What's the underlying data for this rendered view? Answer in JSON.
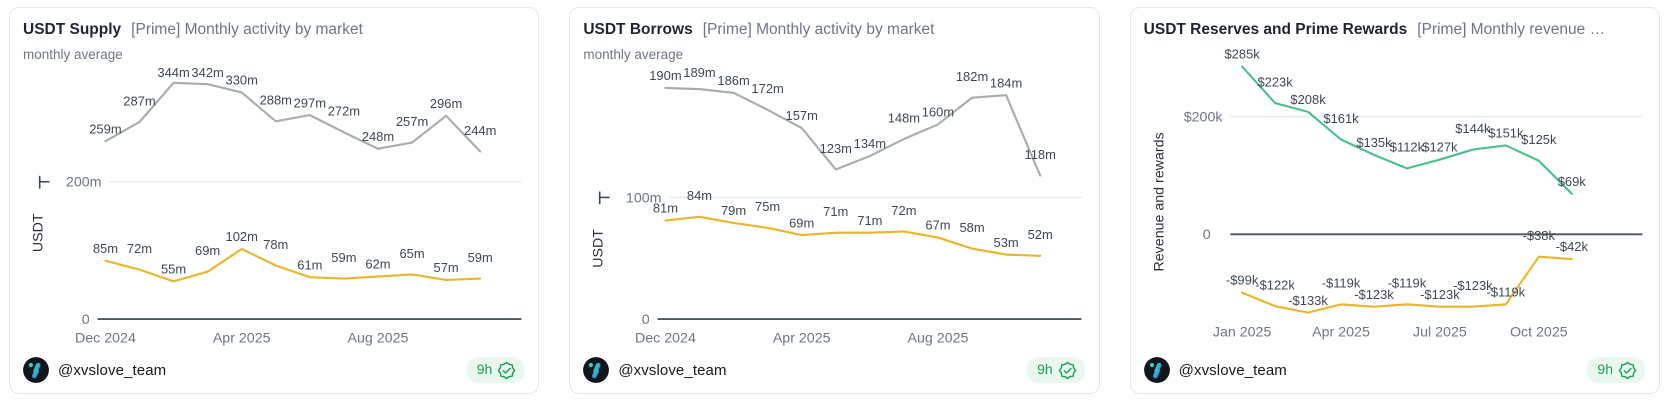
{
  "theme": {
    "badge-green": "#1a9e54",
    "badge-bg": "#e9f7ef",
    "title": "#1f2430",
    "muted": "#6e7681",
    "label": "#3d4852",
    "grid": "#e8eaec",
    "axis": "#4d5660",
    "card-border": "#e5e7eb",
    "card-bg": "#ffffff"
  },
  "cards": [
    {
      "title": "USDT Supply",
      "title_suffix": "[Prime] Monthly activity by market",
      "subtitle": "monthly average",
      "footer": {
        "handle": "@xvslove_team",
        "age": "9h"
      },
      "chart_data": {
        "type": "line",
        "title": "USDT Supply [Prime] Monthly activity by market",
        "unit": "m",
        "ylabel": "USDT",
        "y_gridline": {
          "value": 200,
          "label": "200m"
        },
        "y_zero_label": "0",
        "categories": [
          "Dec 2024",
          "Jan 2025",
          "Feb 2025",
          "Mar 2025",
          "Apr 2025",
          "May 2025",
          "Jun 2025",
          "Jul 2025",
          "Aug 2025",
          "Sep 2025",
          "Oct 2025",
          "Nov 2025"
        ],
        "x_tick_indices": [
          0,
          4,
          8
        ],
        "x_tick_labels": [
          "Dec 2024",
          "Apr 2025",
          "Aug 2025"
        ],
        "series": [
          {
            "name": "gray-series",
            "color": "#a8aea9",
            "values": [
              259,
              287,
              344,
              342,
              330,
              288,
              297,
              272,
              248,
              257,
              296,
              244
            ]
          },
          {
            "name": "yellow-series",
            "color": "#e9b62e",
            "values": [
              85,
              72,
              55,
              69,
              102,
              78,
              61,
              59,
              62,
              65,
              57,
              59
            ]
          }
        ]
      }
    },
    {
      "title": "USDT Borrows",
      "title_suffix": "[Prime] Monthly activity by market",
      "subtitle": "monthly average",
      "footer": {
        "handle": "@xvslove_team",
        "age": "9h"
      },
      "chart_data": {
        "type": "line",
        "title": "USDT Borrows [Prime] Monthly activity by market",
        "unit": "m",
        "ylabel": "USDT",
        "y_gridline": {
          "value": 100,
          "label": "100m"
        },
        "y_zero_label": "0",
        "categories": [
          "Dec 2024",
          "Jan 2025",
          "Feb 2025",
          "Mar 2025",
          "Apr 2025",
          "May 2025",
          "Jun 2025",
          "Jul 2025",
          "Aug 2025",
          "Sep 2025",
          "Oct 2025",
          "Nov 2025"
        ],
        "x_tick_indices": [
          0,
          4,
          8
        ],
        "x_tick_labels": [
          "Dec 2024",
          "Apr 2025",
          "Aug 2025"
        ],
        "series": [
          {
            "name": "gray-series",
            "color": "#a8aea9",
            "values": [
              190,
              189,
              186,
              172,
              157,
              123,
              134,
              148,
              160,
              182,
              184,
              118
            ]
          },
          {
            "name": "yellow-series",
            "color": "#e9b62e",
            "values": [
              81,
              84,
              79,
              75,
              69,
              71,
              71,
              72,
              67,
              58,
              53,
              52
            ]
          }
        ]
      }
    },
    {
      "title": "USDT Reserves and Prime Rewards",
      "title_suffix": "[Prime] Monthly revenue …",
      "subtitle": "",
      "footer": {
        "handle": "@xvslove_team",
        "age": "9h"
      },
      "chart_data": {
        "type": "line",
        "title": "USDT Reserves and Prime Rewards [Prime] Monthly revenue …",
        "unit": "$k",
        "ylabel": "Revenue and rewards",
        "y_gridline": {
          "value": 200,
          "label": "$200k"
        },
        "y_zero_label": "0",
        "categories": [
          "Jan 2025",
          "Feb 2025",
          "Mar 2025",
          "Apr 2025",
          "May 2025",
          "Jun 2025",
          "Jul 2025",
          "Aug 2025",
          "Sep 2025",
          "Oct 2025",
          "Nov 2025"
        ],
        "x_tick_indices": [
          0,
          3,
          6,
          9
        ],
        "x_tick_labels": [
          "Jan 2025",
          "Apr 2025",
          "Jul 2025",
          "Oct 2025"
        ],
        "series": [
          {
            "name": "green-series",
            "color": "#4cc08e",
            "values": [
              285,
              223,
              208,
              161,
              135,
              112,
              127,
              144,
              151,
              125,
              69
            ]
          },
          {
            "name": "yellow-series",
            "color": "#e9b62e",
            "values": [
              -99,
              -122,
              -133,
              -119,
              -123,
              -119,
              -123,
              -123,
              -119,
              -38,
              -42
            ]
          }
        ]
      }
    }
  ]
}
